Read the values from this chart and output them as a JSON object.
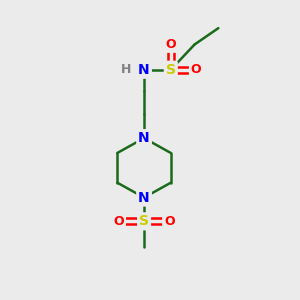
{
  "background_color": "#ebebeb",
  "bond_color": "#1a6a1a",
  "atom_colors": {
    "N": "#0000ff",
    "O": "#ff0000",
    "S": "#cccc00",
    "H": "#808080",
    "C": "#1a6a1a"
  },
  "figsize": [
    3.0,
    3.0
  ],
  "dpi": 100
}
